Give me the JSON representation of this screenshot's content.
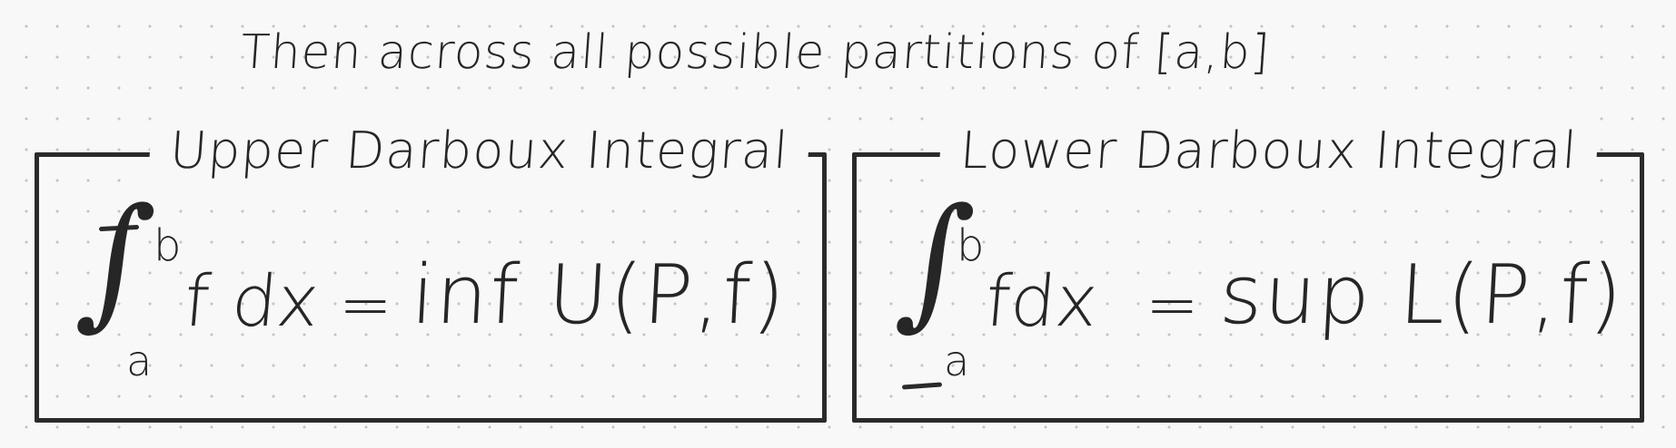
{
  "heading": "Then across all possible partitions of [a,b]",
  "upper": {
    "title": "Upper Darboux Integral",
    "upper_limit": "b",
    "lower_limit": "a",
    "integral_symbol": "∫",
    "integrand": "f dx",
    "equals": "=",
    "rhs": "inf U(P,f)"
  },
  "lower": {
    "title": "Lower Darboux Integral",
    "upper_limit": "b",
    "lower_limit": "a",
    "integral_symbol": "∫",
    "integrand": "fdx",
    "equals": "=",
    "rhs": "sup L(P,f)"
  },
  "colors": {
    "ink": "#262626",
    "background": "#f8f8f8",
    "grid_dot": "#c4c4c4"
  }
}
